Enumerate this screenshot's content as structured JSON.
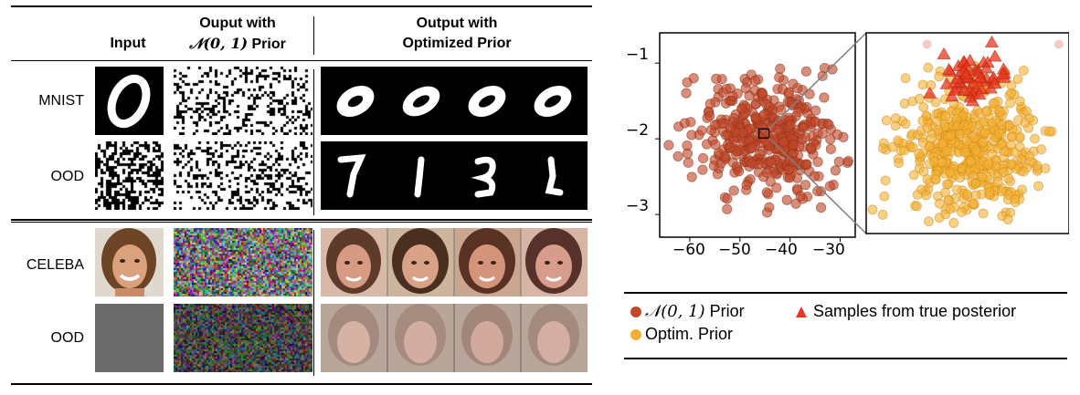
{
  "table": {
    "headers": {
      "input": "Input",
      "std_prior_line1": "Ouput with",
      "std_prior_line2": "𝒩(0, 1) Prior",
      "opt_prior_line1": "Output with",
      "opt_prior_line2": "Optimized Prior"
    },
    "rows": [
      {
        "label": "MNIST"
      },
      {
        "label": "OOD"
      },
      {
        "label": "CELEBA"
      },
      {
        "label": "OOD"
      }
    ]
  },
  "chart_data": [
    {
      "type": "scatter",
      "panel": "main",
      "xticks": [
        "−60",
        "−50",
        "−40",
        "−30"
      ],
      "yticks": [
        "−1",
        "−2",
        "−3"
      ],
      "xlim": [
        -66,
        -27
      ],
      "ylim": [
        -3.3,
        -0.6
      ],
      "series": [
        {
          "name": "𝒩(0, 1) Prior",
          "color": "#c0492a",
          "center": [
            -45,
            -1.95
          ],
          "spread": [
            7,
            0.38
          ],
          "count": 420
        }
      ],
      "zoom_box": {
        "x": [
          -46.2,
          -44.2
        ],
        "y": [
          -1.99,
          -1.87
        ]
      }
    },
    {
      "type": "scatter",
      "panel": "zoom",
      "series": [
        {
          "name": "Optim. Prior",
          "color": "#f3b033",
          "center": [
            0.5,
            0.58
          ],
          "spread": [
            0.17,
            0.17
          ],
          "count": 480
        },
        {
          "name": "Samples from true posterior",
          "color": "#e8381f",
          "center": [
            0.5,
            0.22
          ],
          "spread": [
            0.1,
            0.06
          ],
          "count": 55,
          "marker": "triangle"
        }
      ]
    }
  ],
  "legend": {
    "items": [
      {
        "label": "Prior",
        "prefix": "𝒩(0, 1)",
        "color": "#c0492a",
        "marker": "circle"
      },
      {
        "label": "Samples from true posterior",
        "color": "#e8381f",
        "marker": "triangle"
      },
      {
        "label": "Optim. Prior",
        "color": "#f3b033",
        "marker": "circle"
      }
    ]
  }
}
